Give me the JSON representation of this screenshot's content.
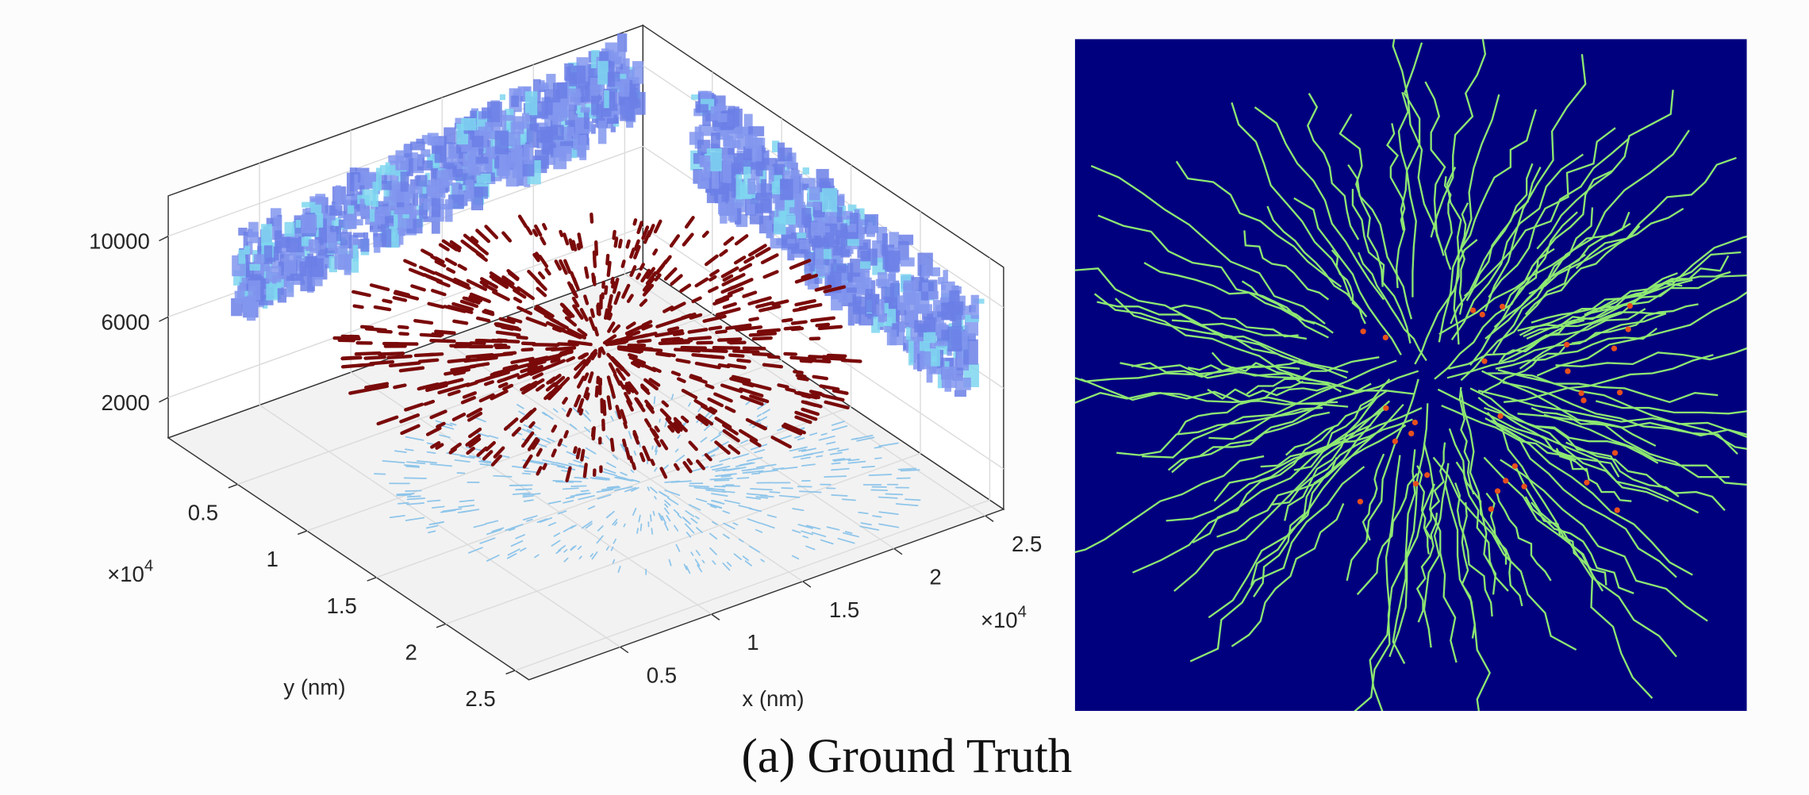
{
  "caption": "(a) Ground Truth",
  "chart_data": {
    "type": "scatter3d",
    "xlabel": "x (nm)",
    "ylabel": "y (nm)",
    "x_exponent": {
      "base": "×10",
      "power": "4"
    },
    "y_exponent": {
      "base": "×10",
      "power": "4"
    },
    "xlim": [
      0,
      26000
    ],
    "ylim": [
      0,
      26000
    ],
    "zlim": [
      0,
      12000
    ],
    "xticks": [
      {
        "value": 5000,
        "label": "0.5"
      },
      {
        "value": 10000,
        "label": "1"
      },
      {
        "value": 15000,
        "label": "1.5"
      },
      {
        "value": 20000,
        "label": "2"
      },
      {
        "value": 25000,
        "label": "2.5"
      }
    ],
    "yticks": [
      {
        "value": 5000,
        "label": "0.5"
      },
      {
        "value": 10000,
        "label": "1"
      },
      {
        "value": 15000,
        "label": "1.5"
      },
      {
        "value": 20000,
        "label": "2"
      },
      {
        "value": 25000,
        "label": "2.5"
      }
    ],
    "zticks": [
      2000,
      6000,
      10000
    ],
    "grid": true
  }
}
